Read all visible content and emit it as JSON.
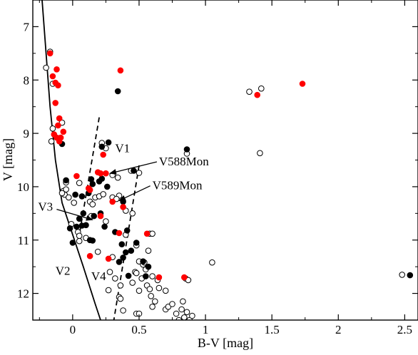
{
  "chart_data": {
    "type": "scatter",
    "title": "",
    "xlabel": "B-V [mag]",
    "ylabel": "V [mag]",
    "xlim": [
      -0.3,
      2.6
    ],
    "ylim": [
      12.5,
      6.5
    ],
    "y_inverted": true,
    "x_ticks": [
      0,
      0.5,
      1,
      1.5,
      2,
      2.5
    ],
    "x_tick_labels": [
      "0",
      "0.5",
      "1",
      "1.5",
      "2",
      "2.5"
    ],
    "y_ticks": [
      7,
      8,
      9,
      10,
      11,
      12
    ],
    "y_tick_labels": [
      "7",
      "8",
      "9",
      "10",
      "11",
      "12"
    ],
    "grid": false,
    "colors": {
      "red": "#ff0000",
      "black": "#000000"
    },
    "series": [
      {
        "style": "open-circle",
        "points": [
          [
            -0.17,
            7.47
          ],
          [
            -0.2,
            7.77
          ],
          [
            -0.15,
            8.07
          ],
          [
            -0.08,
            8.8
          ],
          [
            -0.15,
            8.91
          ],
          [
            -0.16,
            9.15
          ],
          [
            -0.05,
            9.92
          ],
          [
            -0.07,
            10.08
          ],
          [
            -0.06,
            10.15
          ],
          [
            -0.03,
            10.2
          ],
          [
            -0.05,
            10.05
          ],
          [
            -0.08,
            10.12
          ],
          [
            0.05,
            9.93
          ],
          [
            0.01,
            10.3
          ],
          [
            -0.01,
            10.7
          ],
          [
            0.04,
            10.85
          ],
          [
            0.05,
            10.92
          ],
          [
            0.1,
            10.96
          ],
          [
            0.05,
            11.02
          ],
          [
            0.13,
            10.28
          ],
          [
            0.14,
            10.55
          ],
          [
            0.15,
            10.33
          ],
          [
            0.17,
            10.2
          ],
          [
            0.2,
            10.18
          ],
          [
            0.23,
            10.14
          ],
          [
            0.25,
            10.65
          ],
          [
            0.3,
            10.2
          ],
          [
            0.19,
            11.22
          ],
          [
            0.22,
            9.18
          ],
          [
            0.25,
            9.28
          ],
          [
            0.3,
            9.78
          ],
          [
            0.34,
            9.83
          ],
          [
            0.35,
            10.17
          ],
          [
            0.33,
            10.23
          ],
          [
            0.4,
            10.45
          ],
          [
            0.44,
            9.7
          ],
          [
            0.5,
            9.74
          ],
          [
            0.45,
            10.5
          ],
          [
            0.4,
            10.9
          ],
          [
            0.3,
            11.32
          ],
          [
            0.28,
            11.6
          ],
          [
            0.32,
            11.72
          ],
          [
            0.36,
            11.85
          ],
          [
            0.27,
            11.94
          ],
          [
            0.35,
            12.07
          ],
          [
            0.36,
            12.1
          ],
          [
            0.38,
            12.32
          ],
          [
            0.48,
            12.38
          ],
          [
            0.5,
            12.38
          ],
          [
            0.47,
            11.6
          ],
          [
            0.45,
            11.8
          ],
          [
            0.5,
            11.95
          ],
          [
            0.48,
            11.62
          ],
          [
            0.52,
            11.72
          ],
          [
            0.55,
            11.55
          ],
          [
            0.56,
            11.85
          ],
          [
            0.6,
            11.68
          ],
          [
            0.57,
            11.2
          ],
          [
            0.58,
            10.88
          ],
          [
            0.6,
            10.88
          ],
          [
            0.58,
            11.92
          ],
          [
            0.59,
            12.05
          ],
          [
            0.6,
            12.25
          ],
          [
            0.62,
            12.15
          ],
          [
            0.64,
            11.75
          ],
          [
            0.65,
            11.9
          ],
          [
            0.7,
            12.3
          ],
          [
            0.72,
            12.25
          ],
          [
            0.75,
            12.2
          ],
          [
            0.7,
            11.95
          ],
          [
            0.78,
            12.38
          ],
          [
            0.8,
            12.5
          ],
          [
            0.82,
            12.3
          ],
          [
            0.84,
            12.45
          ],
          [
            0.86,
            12.35
          ],
          [
            0.88,
            12.5
          ],
          [
            0.9,
            12.42
          ],
          [
            0.85,
            11.72
          ],
          [
            0.87,
            11.75
          ],
          [
            0.83,
            12.15
          ],
          [
            0.86,
            9.38
          ],
          [
            0.48,
            11.1
          ],
          [
            0.5,
            11.4
          ],
          [
            0.53,
            11.46
          ],
          [
            0.54,
            11.42
          ],
          [
            1.05,
            11.42
          ],
          [
            1.33,
            8.22
          ],
          [
            1.42,
            8.16
          ],
          [
            1.41,
            9.37
          ],
          [
            2.48,
            11.65
          ]
        ]
      },
      {
        "style": "filled-black",
        "points": [
          [
            0.34,
            8.21
          ],
          [
            -0.08,
            9.2
          ],
          [
            -0.05,
            9.88
          ],
          [
            0.02,
            10.15
          ],
          [
            0.07,
            10.18
          ],
          [
            0.12,
            10.12
          ],
          [
            0.15,
            9.95
          ],
          [
            0.14,
            9.86
          ],
          [
            0.2,
            9.9
          ],
          [
            0.22,
            9.85
          ],
          [
            0.26,
            10.0
          ],
          [
            0.22,
            9.25
          ],
          [
            0.27,
            9.17
          ],
          [
            0.46,
            9.7
          ],
          [
            0.38,
            10.28
          ],
          [
            0.32,
            10.85
          ],
          [
            0.16,
            10.55
          ],
          [
            0.21,
            10.5
          ],
          [
            0.24,
            10.75
          ],
          [
            0.08,
            10.5
          ],
          [
            0.05,
            10.6
          ],
          [
            -0.02,
            10.78
          ],
          [
            0.03,
            10.75
          ],
          [
            0.07,
            10.73
          ],
          [
            0.1,
            10.72
          ],
          [
            0.13,
            11.0
          ],
          [
            0.15,
            11.01
          ],
          [
            0.0,
            11.05
          ],
          [
            0.41,
            10.82
          ],
          [
            0.48,
            11.05
          ],
          [
            0.37,
            11.08
          ],
          [
            0.4,
            11.23
          ],
          [
            0.38,
            11.33
          ],
          [
            0.35,
            11.41
          ],
          [
            0.44,
            11.2
          ],
          [
            0.42,
            11.67
          ],
          [
            0.53,
            11.4
          ],
          [
            0.55,
            11.68
          ],
          [
            0.57,
            11.5
          ],
          [
            0.86,
            9.3
          ],
          [
            2.54,
            11.66
          ]
        ]
      },
      {
        "style": "filled-red",
        "points": [
          [
            -0.17,
            7.5
          ],
          [
            -0.12,
            7.8
          ],
          [
            -0.15,
            7.93
          ],
          [
            -0.13,
            8.05
          ],
          [
            -0.11,
            8.1
          ],
          [
            -0.13,
            8.43
          ],
          [
            -0.1,
            8.72
          ],
          [
            -0.11,
            8.85
          ],
          [
            -0.07,
            8.97
          ],
          [
            -0.14,
            9.02
          ],
          [
            -0.12,
            9.08
          ],
          [
            -0.09,
            9.08
          ],
          [
            -0.1,
            9.15
          ],
          [
            0.21,
            9.75
          ],
          [
            0.25,
            9.75
          ],
          [
            0.23,
            9.4
          ],
          [
            0.03,
            9.8
          ],
          [
            0.12,
            10.03
          ],
          [
            0.13,
            10.06
          ],
          [
            0.19,
            9.73
          ],
          [
            0.3,
            10.28
          ],
          [
            0.38,
            10.38
          ],
          [
            0.21,
            10.55
          ],
          [
            0.35,
            10.87
          ],
          [
            0.56,
            10.88
          ],
          [
            0.13,
            11.3
          ],
          [
            0.27,
            11.35
          ],
          [
            0.65,
            11.7
          ],
          [
            0.84,
            11.7
          ],
          [
            0.36,
            7.82
          ],
          [
            1.39,
            8.28
          ],
          [
            1.73,
            8.07
          ]
        ]
      }
    ],
    "lines": [
      {
        "style": "solid",
        "points": [
          [
            -0.23,
            6.5
          ],
          [
            -0.2,
            7.5
          ],
          [
            -0.17,
            8.5
          ],
          [
            -0.13,
            9.5
          ],
          [
            -0.08,
            10.3
          ],
          [
            0.0,
            10.9
          ],
          [
            0.08,
            11.5
          ],
          [
            0.17,
            12.2
          ],
          [
            0.21,
            12.5
          ]
        ]
      },
      {
        "style": "dashed",
        "points": [
          [
            0.2,
            8.7
          ],
          [
            0.04,
            11.05
          ]
        ]
      },
      {
        "style": "dashed",
        "points": [
          [
            0.5,
            9.6
          ],
          [
            0.31,
            12.5
          ]
        ]
      }
    ],
    "annotations": [
      {
        "text": "V1",
        "x": 0.32,
        "y": 9.35
      },
      {
        "text": "V588Mon",
        "x": 0.65,
        "y": 9.6,
        "arrow_to": [
          0.28,
          9.75
        ]
      },
      {
        "text": "V589Mon",
        "x": 0.6,
        "y": 10.05,
        "arrow_to": [
          0.35,
          10.26
        ]
      },
      {
        "text": "V3",
        "x": -0.26,
        "y": 10.45,
        "arrow_to": [
          0.15,
          10.62
        ]
      },
      {
        "text": "V2",
        "x": -0.13,
        "y": 11.65
      },
      {
        "text": "V4",
        "x": 0.14,
        "y": 11.75
      }
    ]
  }
}
